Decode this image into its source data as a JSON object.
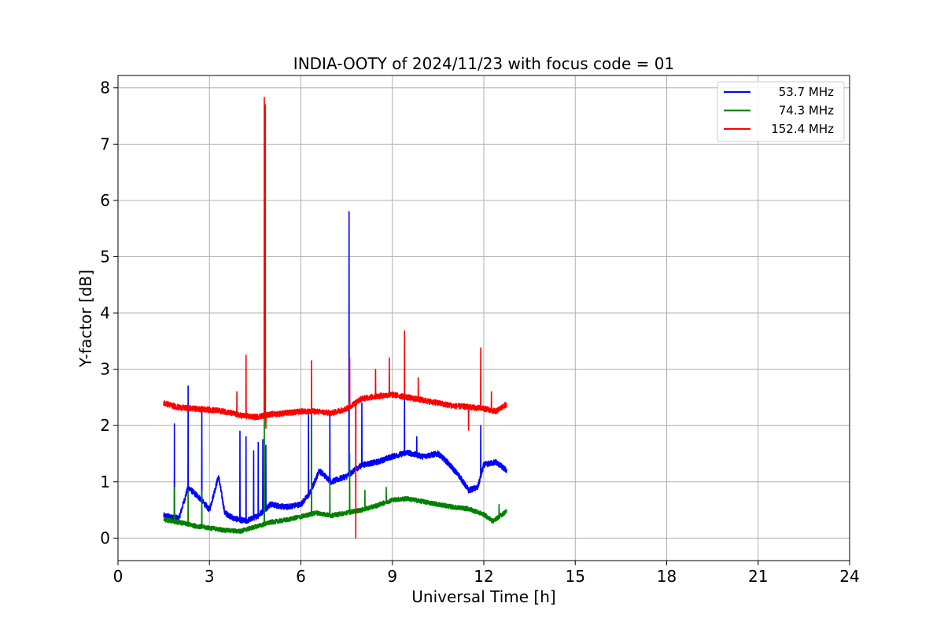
{
  "chart_data": {
    "type": "line",
    "title": "INDIA-OOTY of 2024/11/23 with focus code = 01",
    "xlabel": "Universal Time [h]",
    "ylabel": "Y-factor [dB]",
    "xlim": [
      0,
      24
    ],
    "ylim": [
      -0.4,
      8.22
    ],
    "xticks": [
      0,
      3,
      6,
      9,
      12,
      15,
      18,
      21,
      24
    ],
    "yticks": [
      0,
      1,
      2,
      3,
      4,
      5,
      6,
      7,
      8
    ],
    "grid": true,
    "legend_position": "top-right",
    "x_start": 1.5,
    "x_end": 12.75,
    "series": [
      {
        "name": "53.7 MHz",
        "color": "#0000ff",
        "noise": 0.05,
        "baseline": [
          [
            1.5,
            0.4
          ],
          [
            2.0,
            0.35
          ],
          [
            2.3,
            0.9
          ],
          [
            2.7,
            0.7
          ],
          [
            3.0,
            0.5
          ],
          [
            3.3,
            1.1
          ],
          [
            3.5,
            0.45
          ],
          [
            3.8,
            0.35
          ],
          [
            4.2,
            0.3
          ],
          [
            4.6,
            0.4
          ],
          [
            5.0,
            0.6
          ],
          [
            5.5,
            0.55
          ],
          [
            6.0,
            0.6
          ],
          [
            6.3,
            0.8
          ],
          [
            6.6,
            1.2
          ],
          [
            7.0,
            1.0
          ],
          [
            7.5,
            1.1
          ],
          [
            8.0,
            1.3
          ],
          [
            8.5,
            1.35
          ],
          [
            9.0,
            1.45
          ],
          [
            9.5,
            1.52
          ],
          [
            10.0,
            1.45
          ],
          [
            10.5,
            1.5
          ],
          [
            10.8,
            1.35
          ],
          [
            11.2,
            1.1
          ],
          [
            11.5,
            0.85
          ],
          [
            11.8,
            0.9
          ],
          [
            12.0,
            1.3
          ],
          [
            12.4,
            1.35
          ],
          [
            12.75,
            1.2
          ]
        ],
        "spikes": [
          [
            1.85,
            2.03
          ],
          [
            2.3,
            2.7
          ],
          [
            2.75,
            2.25
          ],
          [
            4.0,
            1.9
          ],
          [
            4.2,
            1.8
          ],
          [
            4.45,
            1.55
          ],
          [
            4.6,
            1.7
          ],
          [
            4.75,
            1.75
          ],
          [
            4.85,
            1.65
          ],
          [
            6.25,
            2.25
          ],
          [
            6.35,
            2.25
          ],
          [
            6.95,
            2.25
          ],
          [
            7.58,
            5.8
          ],
          [
            8.0,
            2.4
          ],
          [
            9.4,
            2.5
          ],
          [
            9.8,
            1.8
          ],
          [
            11.9,
            2.0
          ]
        ]
      },
      {
        "name": "74.3 MHz",
        "color": "#008000",
        "noise": 0.04,
        "baseline": [
          [
            1.5,
            0.33
          ],
          [
            2.0,
            0.28
          ],
          [
            2.5,
            0.22
          ],
          [
            3.0,
            0.18
          ],
          [
            3.5,
            0.14
          ],
          [
            4.0,
            0.12
          ],
          [
            4.5,
            0.2
          ],
          [
            5.0,
            0.28
          ],
          [
            5.5,
            0.32
          ],
          [
            6.0,
            0.38
          ],
          [
            6.5,
            0.45
          ],
          [
            7.0,
            0.4
          ],
          [
            7.5,
            0.45
          ],
          [
            8.0,
            0.5
          ],
          [
            8.5,
            0.58
          ],
          [
            9.0,
            0.68
          ],
          [
            9.5,
            0.7
          ],
          [
            10.0,
            0.65
          ],
          [
            10.5,
            0.6
          ],
          [
            11.0,
            0.55
          ],
          [
            11.5,
            0.52
          ],
          [
            12.0,
            0.42
          ],
          [
            12.3,
            0.3
          ],
          [
            12.75,
            0.48
          ]
        ],
        "spikes": [
          [
            1.85,
            0.9
          ],
          [
            2.3,
            0.85
          ],
          [
            2.75,
            0.85
          ],
          [
            4.8,
            2.35
          ],
          [
            6.35,
            2.2
          ],
          [
            6.95,
            1.0
          ],
          [
            7.6,
            1.5
          ],
          [
            8.1,
            0.85
          ],
          [
            8.8,
            0.9
          ],
          [
            12.5,
            0.6
          ]
        ]
      },
      {
        "name": "152.4 MHz",
        "color": "#ff0000",
        "noise": 0.05,
        "baseline": [
          [
            1.5,
            2.4
          ],
          [
            2.0,
            2.32
          ],
          [
            2.5,
            2.3
          ],
          [
            3.0,
            2.28
          ],
          [
            3.5,
            2.25
          ],
          [
            4.0,
            2.18
          ],
          [
            4.5,
            2.15
          ],
          [
            5.0,
            2.2
          ],
          [
            5.5,
            2.22
          ],
          [
            6.0,
            2.25
          ],
          [
            6.5,
            2.25
          ],
          [
            7.0,
            2.22
          ],
          [
            7.5,
            2.3
          ],
          [
            8.0,
            2.48
          ],
          [
            8.5,
            2.52
          ],
          [
            9.0,
            2.55
          ],
          [
            9.5,
            2.5
          ],
          [
            10.0,
            2.45
          ],
          [
            10.5,
            2.4
          ],
          [
            11.0,
            2.35
          ],
          [
            11.5,
            2.33
          ],
          [
            12.0,
            2.3
          ],
          [
            12.4,
            2.25
          ],
          [
            12.75,
            2.38
          ]
        ],
        "spikes": [
          [
            4.2,
            3.25
          ],
          [
            4.8,
            7.83
          ],
          [
            4.83,
            7.7
          ],
          [
            3.9,
            2.6
          ],
          [
            6.35,
            3.15
          ],
          [
            7.6,
            3.2
          ],
          [
            8.45,
            3.0
          ],
          [
            8.9,
            3.2
          ],
          [
            9.4,
            3.68
          ],
          [
            9.85,
            2.85
          ],
          [
            11.9,
            3.38
          ],
          [
            12.25,
            2.6
          ]
        ],
        "dips": [
          [
            7.8,
            0.0
          ],
          [
            4.85,
            1.95
          ],
          [
            11.5,
            1.92
          ]
        ]
      }
    ]
  }
}
